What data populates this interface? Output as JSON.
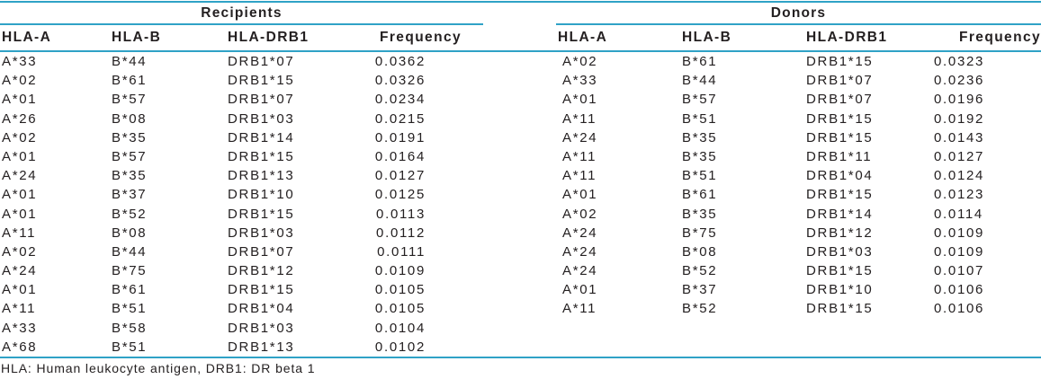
{
  "colors": {
    "rule": "#2fa2c6",
    "text": "#242021",
    "background": "#ffffff"
  },
  "table": {
    "sections": [
      {
        "title": "Recipients",
        "columns": [
          "HLA-A",
          "HLA-B",
          "HLA-DRB1",
          "Frequency"
        ],
        "rows": [
          [
            "A*33",
            "B*44",
            "DRB1*07",
            "0.0362"
          ],
          [
            "A*02",
            "B*61",
            "DRB1*15",
            "0.0326"
          ],
          [
            "A*01",
            "B*57",
            "DRB1*07",
            "0.0234"
          ],
          [
            "A*26",
            "B*08",
            "DRB1*03",
            "0.0215"
          ],
          [
            "A*02",
            "B*35",
            "DRB1*14",
            "0.0191"
          ],
          [
            "A*01",
            "B*57",
            "DRB1*15",
            "0.0164"
          ],
          [
            "A*24",
            "B*35",
            "DRB1*13",
            "0.0127"
          ],
          [
            "A*01",
            "B*37",
            "DRB1*10",
            "0.0125"
          ],
          [
            "A*01",
            "B*52",
            "DRB1*15",
            "0.0113"
          ],
          [
            "A*11",
            "B*08",
            "DRB1*03",
            "0.0112"
          ],
          [
            "A*02",
            "B*44",
            "DRB1*07",
            "0.0111"
          ],
          [
            "A*24",
            "B*75",
            "DRB1*12",
            "0.0109"
          ],
          [
            "A*01",
            "B*61",
            "DRB1*15",
            "0.0105"
          ],
          [
            "A*11",
            "B*51",
            "DRB1*04",
            "0.0105"
          ],
          [
            "A*33",
            "B*58",
            "DRB1*03",
            "0.0104"
          ],
          [
            "A*68",
            "B*51",
            "DRB1*13",
            "0.0102"
          ]
        ]
      },
      {
        "title": "Donors",
        "columns": [
          "HLA-A",
          "HLA-B",
          "HLA-DRB1",
          "Frequency"
        ],
        "rows": [
          [
            "A*02",
            "B*61",
            "DRB1*15",
            "0.0323"
          ],
          [
            "A*33",
            "B*44",
            "DRB1*07",
            "0.0236"
          ],
          [
            "A*01",
            "B*57",
            "DRB1*07",
            "0.0196"
          ],
          [
            "A*11",
            "B*51",
            "DRB1*15",
            "0.0192"
          ],
          [
            "A*24",
            "B*35",
            "DRB1*15",
            "0.0143"
          ],
          [
            "A*11",
            "B*35",
            "DRB1*11",
            "0.0127"
          ],
          [
            "A*11",
            "B*51",
            "DRB1*04",
            "0.0124"
          ],
          [
            "A*01",
            "B*61",
            "DRB1*15",
            "0.0123"
          ],
          [
            "A*02",
            "B*35",
            "DRB1*14",
            "0.0114"
          ],
          [
            "A*24",
            "B*75",
            "DRB1*12",
            "0.0109"
          ],
          [
            "A*24",
            "B*08",
            "DRB1*03",
            "0.0109"
          ],
          [
            "A*24",
            "B*52",
            "DRB1*15",
            "0.0107"
          ],
          [
            "A*01",
            "B*37",
            "DRB1*10",
            "0.0106"
          ],
          [
            "A*11",
            "B*52",
            "DRB1*15",
            "0.0106"
          ]
        ]
      }
    ],
    "footnote": "HLA: Human leukocyte antigen, DRB1: DR beta 1"
  }
}
